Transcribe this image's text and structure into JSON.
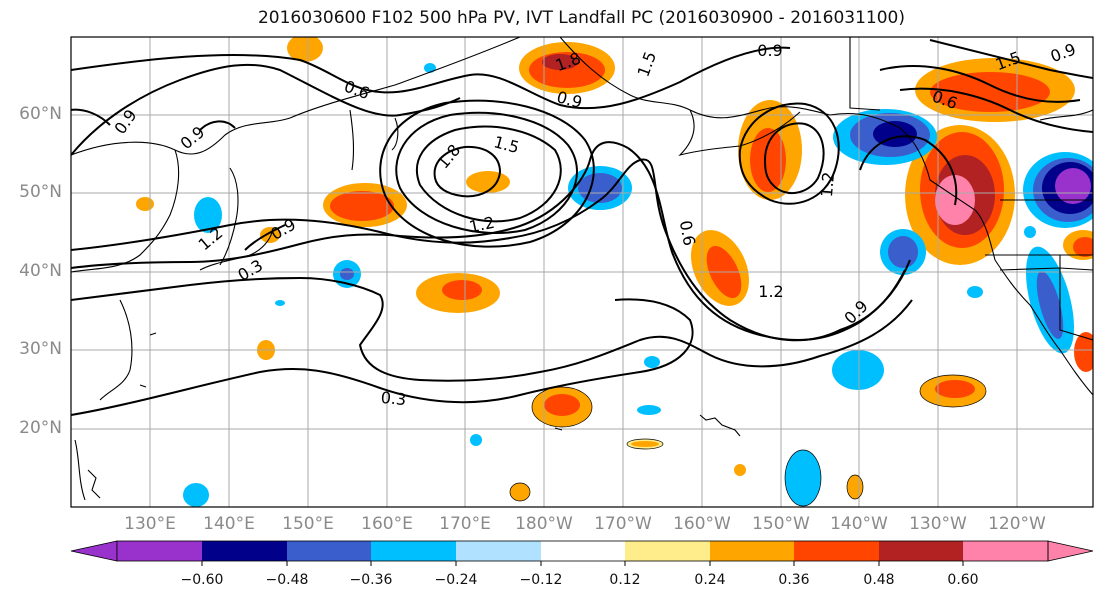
{
  "title": "2016030600 F102 500 hPa PV, IVT Landfall PC (2016030900 - 2016031100)",
  "lat_labels": [
    "60°N",
    "50°N",
    "40°N",
    "30°N",
    "20°N"
  ],
  "lon_labels": [
    "130°E",
    "140°E",
    "150°E",
    "160°E",
    "170°E",
    "180°W",
    "170°W",
    "160°W",
    "150°W",
    "140°W",
    "130°W",
    "120°W"
  ],
  "contour_labels": [
    "0.9",
    "0.6",
    "0.9",
    "1.8",
    "1.5",
    "0.9",
    "0.6",
    "0.9",
    "1.5",
    "0.9",
    "1.8",
    "1.5",
    "1.2",
    "0.9",
    "1.2",
    "0.3",
    "1.2",
    "1.2",
    "0.9",
    "0.6",
    "0.3"
  ],
  "colorbar": {
    "colors": [
      "#9932cc",
      "#00008b",
      "#3a5fcd",
      "#00bfff",
      "#b0e2ff",
      "#ffffff",
      "#ffec8b",
      "#ffa500",
      "#ff4500",
      "#b22222",
      "#ff82ab"
    ],
    "tick_labels": [
      "−0.60",
      "−0.48",
      "−0.36",
      "−0.24",
      "−0.12",
      "0.12",
      "0.24",
      "0.36",
      "0.48",
      "0.60"
    ]
  }
}
